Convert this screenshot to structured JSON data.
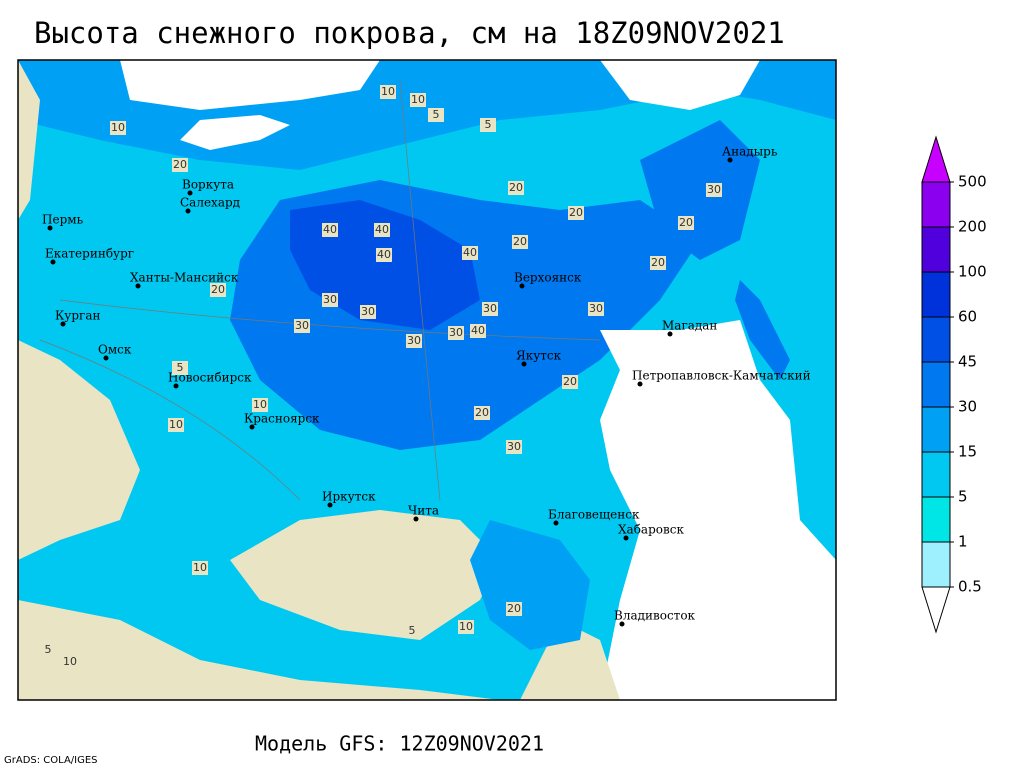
{
  "title": "Высота снежного покрова, см на 18Z09NOV2021",
  "footer": "Модель GFS: 12Z09NOV2021",
  "credit": "GrADS: COLA/IGES",
  "cities": [
    "Анадырь",
    "Воркута",
    "Салехард",
    "Пермь",
    "Екатеринбург",
    "Ханты-Мансийск",
    "Верхоянск",
    "Курган",
    "Магадан",
    "Омск",
    "Якутск",
    "Петропавловск-Камчатский",
    "Новосибирск",
    "Красноярск",
    "Иркутск",
    "Чита",
    "Благовещенск",
    "Хабаровск",
    "Владивосток"
  ],
  "contour_labels": [
    10,
    5,
    10,
    5,
    20,
    10,
    20,
    40,
    40,
    40,
    40,
    20,
    30,
    30,
    30,
    30,
    30,
    40,
    30,
    20,
    20,
    30,
    20,
    30,
    20,
    20,
    30,
    10,
    20,
    10,
    5,
    10,
    20,
    10,
    5,
    10,
    5
  ],
  "colorbar": {
    "levels": [
      0.5,
      1,
      5,
      15,
      30,
      45,
      60,
      100,
      200,
      500
    ],
    "colors": [
      "#ffffff",
      "#9ff0ff",
      "#00e6e6",
      "#00c8f0",
      "#00a0f5",
      "#0078f0",
      "#0050e6",
      "#0032dc",
      "#5000dc",
      "#8c00f0",
      "#c800ff"
    ]
  }
}
